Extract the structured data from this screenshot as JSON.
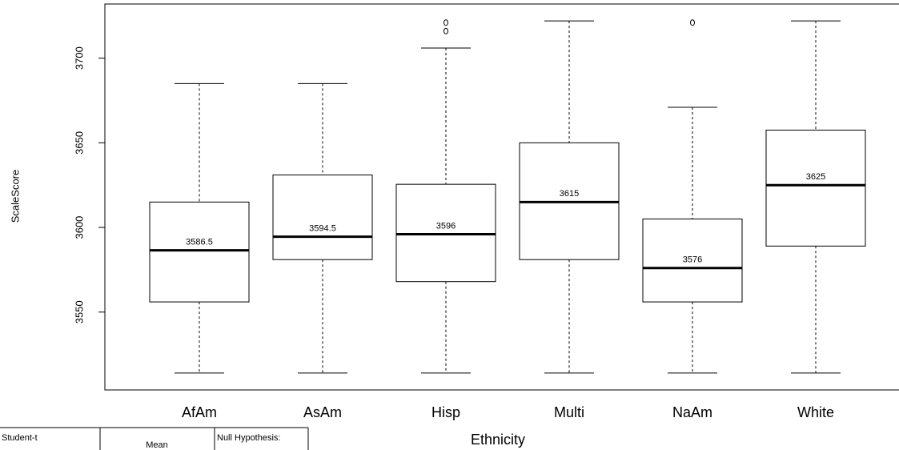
{
  "chart_data": {
    "type": "box",
    "x_label": "Ethnicity",
    "y_label": "ScaleScore",
    "categories": [
      "AfAm",
      "AsAm",
      "Hisp",
      "Multi",
      "NaAm",
      "White"
    ],
    "boxes": [
      {
        "min": 3514,
        "q1": 3556,
        "median": 3586.5,
        "q3": 3615,
        "max": 3685,
        "outliers": []
      },
      {
        "min": 3514,
        "q1": 3581,
        "median": 3594.5,
        "q3": 3631,
        "max": 3685,
        "outliers": []
      },
      {
        "min": 3514,
        "q1": 3568,
        "median": 3596,
        "q3": 3625.5,
        "max": 3706,
        "outliers": [
          3716,
          3721
        ]
      },
      {
        "min": 3514,
        "q1": 3581,
        "median": 3615,
        "q3": 3650,
        "max": 3722,
        "outliers": []
      },
      {
        "min": 3514,
        "q1": 3556,
        "median": 3576,
        "q3": 3605,
        "max": 3671,
        "outliers": [
          3721
        ]
      },
      {
        "min": 3514,
        "q1": 3589,
        "median": 3625,
        "q3": 3657.5,
        "max": 3722,
        "outliers": []
      }
    ],
    "ylim": [
      3504,
      3732
    ],
    "yticks": [
      3550,
      3600,
      3650,
      3700
    ],
    "color": "#000000"
  },
  "table": {
    "cells": [
      "Student-t",
      "Mean",
      "Null Hypothesis:"
    ]
  }
}
